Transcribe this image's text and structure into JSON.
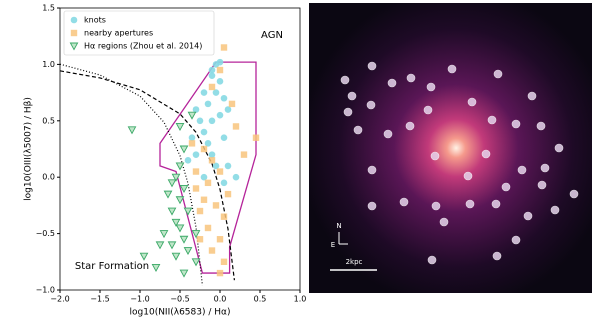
{
  "chart_data": {
    "type": "scatter",
    "x_label": "log10(NII(λ6583) / Hα)",
    "y_label": "log10(OIII(λ5007) / Hβ)",
    "annotations": [
      "AGN",
      "Star Formation"
    ],
    "xlim": [
      -2.0,
      1.0
    ],
    "ylim": [
      -1.0,
      1.5
    ],
    "xticks": [
      {
        "value": -2.0,
        "label": "−2.0"
      },
      {
        "value": -1.5,
        "label": "−1.5"
      },
      {
        "value": -1.0,
        "label": "−1.0"
      },
      {
        "value": -0.5,
        "label": "−0.5"
      },
      {
        "value": 0,
        "label": "0.0"
      },
      0.5,
      {
        "value": 1.0,
        "label": "1.0"
      }
    ],
    "yticks": [
      {
        "value": -1.0,
        "label": "−1.0"
      },
      {
        "value": -0.5,
        "label": "−0.5"
      },
      {
        "value": 0,
        "label": "0.0"
      },
      0.5,
      {
        "value": 1.0,
        "label": "1.0"
      },
      1.5
    ],
    "legend": "upper left",
    "series": [
      {
        "name": "knots",
        "color": "#86d9e3",
        "marker": "circle",
        "x": [
          -0.1,
          -0.05,
          0.0,
          -0.1,
          0.0,
          -0.2,
          -0.05,
          0.05,
          -0.15,
          -0.3,
          0.1,
          -0.25,
          -0.1,
          0.0,
          -0.2,
          -0.35,
          -0.15,
          0.05,
          -0.3,
          -0.1,
          0.1,
          -0.2,
          0.05,
          0.2,
          -0.05,
          -0.4
        ],
        "values": [
          0.95,
          1.0,
          1.02,
          0.9,
          0.85,
          0.75,
          0.75,
          0.7,
          0.65,
          0.6,
          0.6,
          0.5,
          0.5,
          0.55,
          0.4,
          0.35,
          0.3,
          0.35,
          0.2,
          0.2,
          0.1,
          0.0,
          -0.05,
          0.0,
          0.1,
          0.15
        ]
      },
      {
        "name": "nearby apertures",
        "color": "#f8c47c",
        "marker": "square",
        "x": [
          0.05,
          0.0,
          -0.1,
          0.15,
          0.2,
          0.45,
          0.3,
          -0.2,
          -0.1,
          -0.3,
          0.0,
          -0.15,
          -0.3,
          0.1,
          -0.2,
          -0.05,
          0.05,
          -0.25,
          -0.15,
          0.0,
          -0.1,
          0.05,
          0.0,
          -0.35,
          -0.25
        ],
        "values": [
          1.15,
          0.95,
          0.8,
          0.65,
          0.45,
          0.35,
          0.2,
          0.25,
          0.15,
          0.05,
          0.05,
          -0.05,
          -0.1,
          -0.15,
          -0.2,
          -0.25,
          -0.35,
          -0.3,
          -0.45,
          -0.55,
          -0.65,
          -0.75,
          -0.85,
          0.3,
          -0.55
        ]
      },
      {
        "name": "Hα regions (Zhou et al. 2014)",
        "color": "#3aa867",
        "marker": "triangle",
        "x": [
          -1.1,
          -0.5,
          -0.35,
          -0.45,
          -0.5,
          -0.55,
          -0.6,
          -0.45,
          -0.65,
          -0.5,
          -0.6,
          -0.4,
          -0.55,
          -0.5,
          -0.7,
          -0.45,
          -0.6,
          -0.75,
          -0.4,
          -0.55,
          -0.95,
          -0.3,
          -0.8,
          -0.45,
          -0.3
        ],
        "values": [
          0.42,
          0.45,
          0.55,
          0.25,
          0.1,
          0.0,
          -0.05,
          -0.1,
          -0.15,
          -0.2,
          -0.3,
          -0.3,
          -0.4,
          -0.45,
          -0.5,
          -0.55,
          -0.6,
          -0.6,
          -0.65,
          -0.7,
          -0.7,
          -0.75,
          -0.8,
          -0.85,
          -0.5
        ]
      }
    ],
    "lines": [
      {
        "style": "dashed",
        "color": "#000000",
        "x": [
          -2.0,
          -1.5,
          -1.0,
          -0.5,
          -0.3,
          -0.1,
          0.0,
          0.1,
          0.18
        ],
        "values": [
          0.943,
          0.88,
          0.775,
          0.561,
          0.398,
          0.12,
          -0.108,
          -0.459,
          -0.913
        ]
      },
      {
        "style": "dotted",
        "color": "#000000",
        "x": [
          -2.0,
          -1.5,
          -1.0,
          -0.7,
          -0.5,
          -0.4,
          -0.3,
          -0.22
        ],
        "values": [
          1.002,
          0.906,
          0.719,
          0.487,
          0.191,
          -0.056,
          -0.443,
          -0.959
        ]
      }
    ],
    "region": {
      "color": "#b5249a",
      "x": [
        -0.05,
        0.45,
        0.45,
        0.12,
        0.12,
        -0.22,
        -0.55,
        -0.75,
        -0.75
      ],
      "values": [
        1.02,
        1.02,
        0.2,
        -0.62,
        -0.85,
        -0.85,
        0.05,
        0.1,
        0.3
      ]
    }
  },
  "image": {
    "compass": [
      "N",
      "E"
    ],
    "scale_label": "2kpc"
  }
}
